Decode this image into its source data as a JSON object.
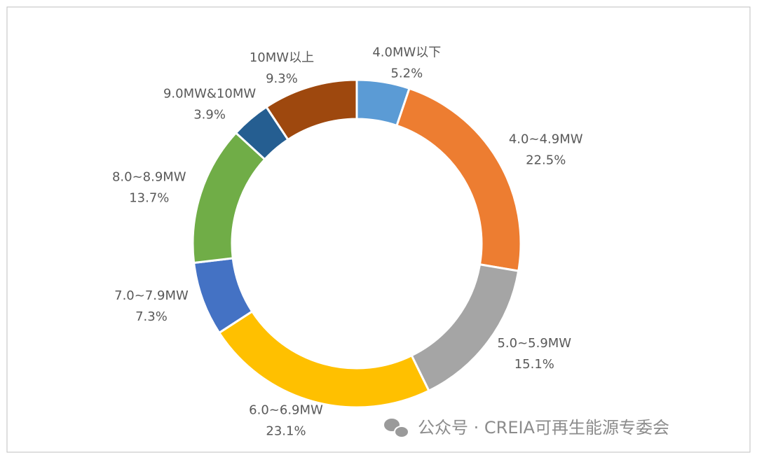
{
  "chart_data": {
    "type": "donut",
    "categories": [
      "4.0MW以下",
      "4.0~4.9MW",
      "5.0~5.9MW",
      "6.0~6.9MW",
      "7.0~7.9MW",
      "8.0~8.9MW",
      "9.0MW&10MW",
      "10MW以上"
    ],
    "values": [
      5.2,
      22.5,
      15.1,
      23.1,
      7.3,
      13.7,
      3.9,
      9.3
    ],
    "value_labels": [
      "5.2%",
      "22.5%",
      "15.1%",
      "23.1%",
      "7.3%",
      "13.7%",
      "3.9%",
      "9.3%"
    ],
    "colors": [
      "#5b9bd5",
      "#ed7d31",
      "#a5a5a5",
      "#ffc000",
      "#4472c4",
      "#70ad47",
      "#255e91",
      "#9e480e"
    ]
  },
  "watermark": "公众号 · CREIA可再生能源专委会"
}
